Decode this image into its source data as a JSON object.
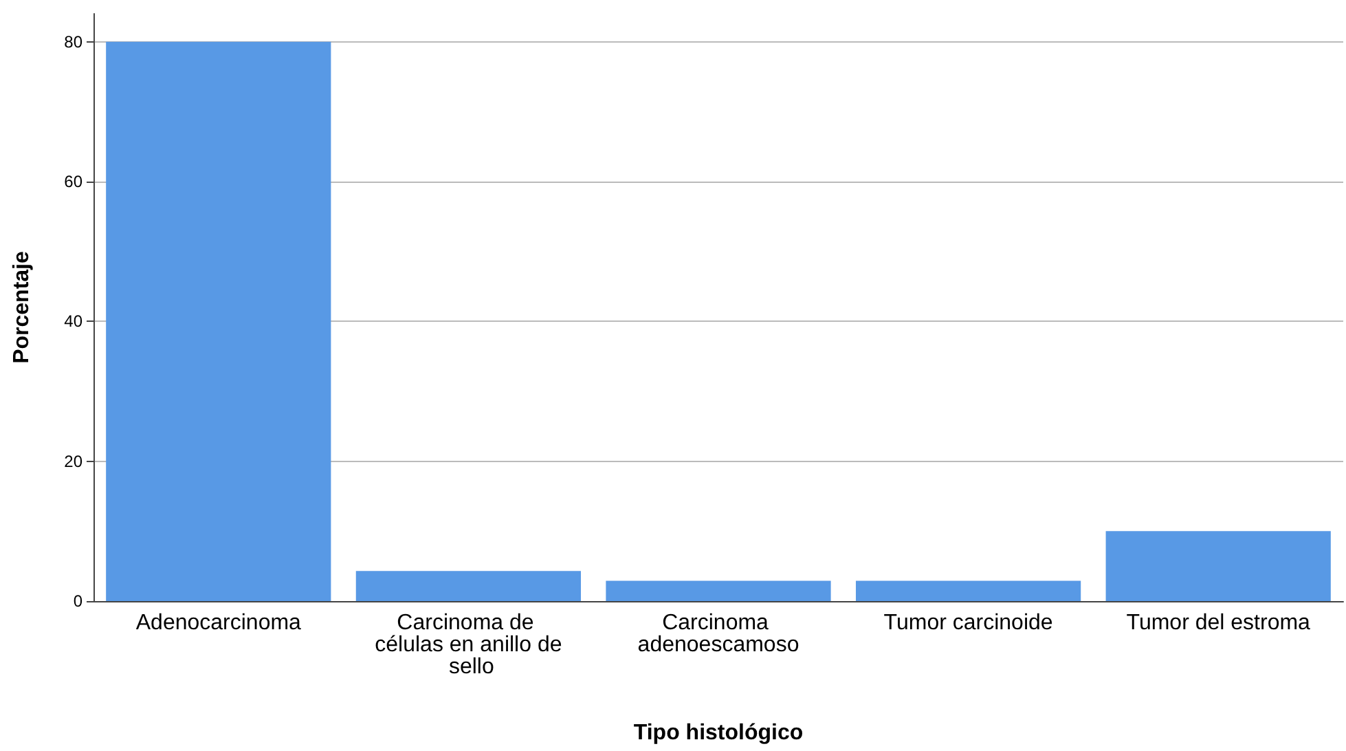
{
  "chart_data": {
    "type": "bar",
    "xlabel": "Tipo histológico",
    "ylabel": "Porcentaje",
    "categories": [
      "Adenocarcinoma",
      "Carcinoma de células en anillo de sello",
      "Carcinoma adenoescamoso",
      "Tumor carcinoide",
      "Tumor del estroma"
    ],
    "values": [
      80,
      4.3,
      2.9,
      2.9,
      10
    ],
    "color": "#5899e5",
    "ylim": [
      0,
      84
    ],
    "yticks": [
      0,
      20,
      40,
      60,
      80
    ],
    "grid": "y"
  }
}
